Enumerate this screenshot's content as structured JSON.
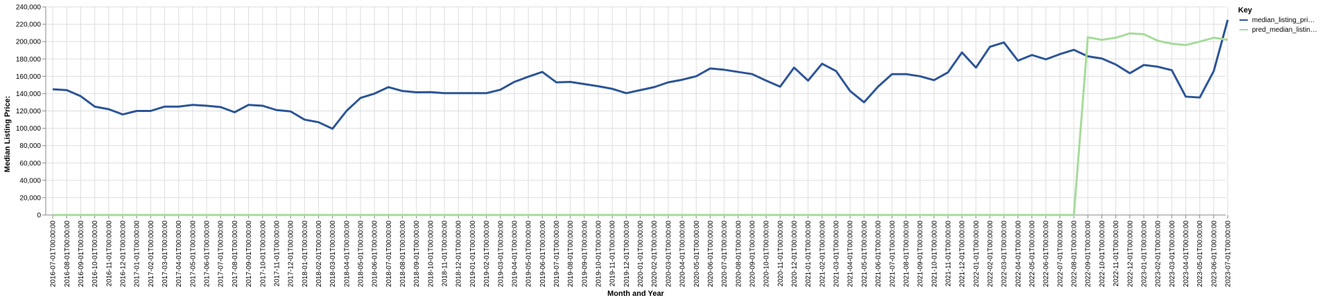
{
  "chart_data": {
    "type": "line",
    "xlabel": "Month and Year",
    "ylabel": "Median Listing Price:",
    "ylim": [
      0,
      240000
    ],
    "yticks": [
      0,
      20000,
      40000,
      60000,
      80000,
      100000,
      120000,
      140000,
      160000,
      180000,
      200000,
      220000,
      240000
    ],
    "ytick_labels": [
      "0",
      "20,000",
      "40,000",
      "60,000",
      "80,000",
      "100,000",
      "120,000",
      "140,000",
      "160,000",
      "180,000",
      "200,000",
      "220,000",
      "240,000"
    ],
    "grid": true,
    "legend": {
      "title": "Key",
      "position": "right"
    },
    "x": [
      "2016-07-01T00:00:00",
      "2016-08-01T00:00:00",
      "2016-09-01T00:00:00",
      "2016-10-01T00:00:00",
      "2016-11-01T00:00:00",
      "2016-12-01T00:00:00",
      "2017-01-01T00:00:00",
      "2017-02-01T00:00:00",
      "2017-03-01T00:00:00",
      "2017-04-01T00:00:00",
      "2017-05-01T00:00:00",
      "2017-06-01T00:00:00",
      "2017-07-01T00:00:00",
      "2017-08-01T00:00:00",
      "2017-09-01T00:00:00",
      "2017-10-01T00:00:00",
      "2017-11-01T00:00:00",
      "2017-12-01T00:00:00",
      "2018-01-01T00:00:00",
      "2018-02-01T00:00:00",
      "2018-03-01T00:00:00",
      "2018-04-01T00:00:00",
      "2018-05-01T00:00:00",
      "2018-06-01T00:00:00",
      "2018-07-01T00:00:00",
      "2018-08-01T00:00:00",
      "2018-09-01T00:00:00",
      "2018-10-01T00:00:00",
      "2018-11-01T00:00:00",
      "2018-12-01T00:00:00",
      "2019-01-01T00:00:00",
      "2019-02-01T00:00:00",
      "2019-03-01T00:00:00",
      "2019-04-01T00:00:00",
      "2019-05-01T00:00:00",
      "2019-06-01T00:00:00",
      "2019-07-01T00:00:00",
      "2019-08-01T00:00:00",
      "2019-09-01T00:00:00",
      "2019-10-01T00:00:00",
      "2019-11-01T00:00:00",
      "2019-12-01T00:00:00",
      "2020-01-01T00:00:00",
      "2020-02-01T00:00:00",
      "2020-03-01T00:00:00",
      "2020-04-01T00:00:00",
      "2020-05-01T00:00:00",
      "2020-06-01T00:00:00",
      "2020-07-01T00:00:00",
      "2020-08-01T00:00:00",
      "2020-09-01T00:00:00",
      "2020-10-01T00:00:00",
      "2020-11-01T00:00:00",
      "2020-12-01T00:00:00",
      "2021-01-01T00:00:00",
      "2021-02-01T00:00:00",
      "2021-03-01T00:00:00",
      "2021-04-01T00:00:00",
      "2021-05-01T00:00:00",
      "2021-06-01T00:00:00",
      "2021-07-01T00:00:00",
      "2021-08-01T00:00:00",
      "2021-09-01T00:00:00",
      "2021-10-01T00:00:00",
      "2021-11-01T00:00:00",
      "2021-12-01T00:00:00",
      "2022-01-01T00:00:00",
      "2022-02-01T00:00:00",
      "2022-03-01T00:00:00",
      "2022-04-01T00:00:00",
      "2022-05-01T00:00:00",
      "2022-06-01T00:00:00",
      "2022-07-01T00:00:00",
      "2022-08-01T00:00:00",
      "2022-09-01T00:00:00",
      "2022-10-01T00:00:00",
      "2022-11-01T00:00:00",
      "2022-12-01T00:00:00",
      "2023-01-01T00:00:00",
      "2023-02-01T00:00:00",
      "2023-03-01T00:00:00",
      "2023-04-01T00:00:00",
      "2023-05-01T00:00:00",
      "2023-06-01T00:00:00",
      "2023-07-01T00:00:00"
    ],
    "series": [
      {
        "name": "median_listing_pri…",
        "color": "#2c5596",
        "values": [
          145000,
          144000,
          137000,
          125000,
          122000,
          116000,
          120000,
          120000,
          125000,
          125000,
          127000,
          126000,
          124500,
          118500,
          127000,
          126000,
          121000,
          119500,
          110000,
          107000,
          99500,
          120000,
          135000,
          140000,
          147500,
          143000,
          141500,
          141700,
          140500,
          140500,
          140500,
          140500,
          144500,
          153500,
          159500,
          165000,
          153000,
          153500,
          151000,
          148500,
          145500,
          140500,
          144000,
          147500,
          153000,
          156000,
          160000,
          169000,
          167500,
          165000,
          162500,
          155000,
          148000,
          170000,
          155000,
          174500,
          166000,
          143000,
          130000,
          148000,
          162500,
          162500,
          160000,
          155500,
          164500,
          187500,
          170000,
          194000,
          199000,
          178000,
          184500,
          179500,
          185500,
          190500,
          183000,
          180500,
          173500,
          163500,
          173000,
          171000,
          167000,
          136500,
          135500,
          166000,
          225000
        ]
      },
      {
        "name": "pred_median_listin…",
        "color": "#a6db9a",
        "values": [
          0,
          0,
          0,
          0,
          0,
          0,
          0,
          0,
          0,
          0,
          0,
          0,
          0,
          0,
          0,
          0,
          0,
          0,
          0,
          0,
          0,
          0,
          0,
          0,
          0,
          0,
          0,
          0,
          0,
          0,
          0,
          0,
          0,
          0,
          0,
          0,
          0,
          0,
          0,
          0,
          0,
          0,
          0,
          0,
          0,
          0,
          0,
          0,
          0,
          0,
          0,
          0,
          0,
          0,
          0,
          0,
          0,
          0,
          0,
          0,
          0,
          0,
          0,
          0,
          0,
          0,
          0,
          0,
          0,
          0,
          0,
          0,
          0,
          0,
          205000,
          202000,
          204500,
          209500,
          208500,
          201000,
          197500,
          196000,
          200000,
          204500,
          202000
        ]
      }
    ]
  }
}
